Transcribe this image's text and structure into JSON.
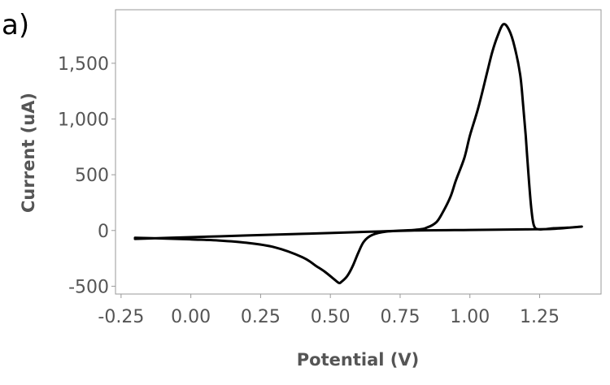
{
  "panel_label": "a)",
  "chart_data": {
    "type": "line",
    "title": "",
    "xlabel": "Potential (V)",
    "ylabel": "Current (uA)",
    "xlim": [
      -0.27,
      1.47
    ],
    "ylim": [
      -570,
      1980
    ],
    "x_ticks": [
      -0.25,
      0,
      0.25,
      0.5,
      0.75,
      1.0,
      1.25
    ],
    "x_tick_labels": [
      "-0.25",
      "0.00",
      "0.25",
      "0.50",
      "0.75",
      "1.00",
      "1.25"
    ],
    "y_ticks": [
      -500,
      0,
      500,
      1000,
      1500
    ],
    "y_tick_labels": [
      "-500",
      "0",
      "500",
      "1,000",
      "1,500"
    ],
    "grid": false,
    "legend": "none",
    "line_color": "#000000",
    "frame_color": "#9a9a9a",
    "series": [
      {
        "x": [
          -0.2,
          0.0,
          0.2,
          0.4,
          0.6,
          0.8,
          0.85,
          0.88,
          0.9,
          0.93,
          0.95,
          0.98,
          1.0,
          1.03,
          1.06,
          1.08,
          1.1,
          1.12,
          1.14,
          1.16,
          1.18,
          1.19,
          1.2,
          1.21,
          1.22,
          1.23,
          1.25,
          1.3,
          1.35,
          1.4,
          1.3,
          1.2,
          1.0,
          0.8,
          0.7,
          0.65,
          0.62,
          0.6,
          0.58,
          0.56,
          0.54,
          0.53,
          0.51,
          0.48,
          0.45,
          0.4,
          0.3,
          0.2,
          0.1,
          0.0,
          -0.1,
          -0.2
        ],
        "y": [
          -75,
          -60,
          -45,
          -30,
          -15,
          5,
          30,
          75,
          150,
          300,
          450,
          650,
          850,
          1100,
          1400,
          1600,
          1750,
          1850,
          1800,
          1650,
          1400,
          1150,
          850,
          500,
          200,
          40,
          10,
          20,
          25,
          35,
          15,
          10,
          5,
          0,
          -10,
          -40,
          -100,
          -200,
          -320,
          -410,
          -460,
          -470,
          -430,
          -370,
          -320,
          -240,
          -150,
          -110,
          -90,
          -80,
          -72,
          -65
        ]
      }
    ]
  }
}
